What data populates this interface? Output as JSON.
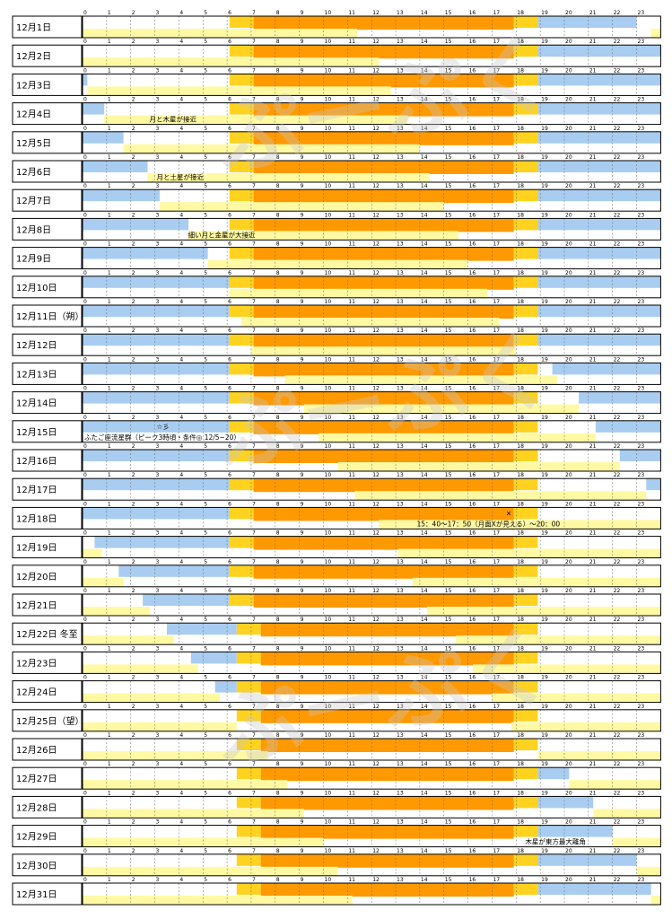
{
  "chart_data": {
    "type": "timeline",
    "hours": [
      "0",
      "1",
      "2",
      "3",
      "4",
      "5",
      "6",
      "7",
      "8",
      "9",
      "10",
      "11",
      "12",
      "13",
      "14",
      "15",
      "16",
      "17",
      "18",
      "19",
      "20",
      "21",
      "22",
      "23"
    ],
    "x_range": [
      0,
      24
    ],
    "watermark": "ぷーぷく",
    "colors": {
      "moon": "#a9cdf0",
      "twilight": "#ffd21f",
      "day": "#ff9900",
      "moonlow": "#fff9a3",
      "grid": "#666666",
      "border": "#000000"
    },
    "series_legend": [
      "moon",
      "twilight",
      "day",
      "moonlow"
    ],
    "days": [
      {
        "label": "12月1日",
        "moon": [
          [
            18.9,
            23.0
          ]
        ],
        "moonlow": [
          [
            0,
            11.4
          ],
          [
            23.6,
            24
          ]
        ],
        "tw": [
          6.1,
          7.1,
          17.9,
          18.9
        ],
        "notes": []
      },
      {
        "label": "12月2日",
        "moon": [
          [
            18.9,
            24
          ]
        ],
        "moonlow": [
          [
            0,
            12.3
          ]
        ],
        "tw": [
          6.1,
          7.1,
          17.9,
          18.9
        ],
        "notes": []
      },
      {
        "label": "12月3日",
        "moon": [
          [
            0,
            0.2
          ],
          [
            18.9,
            24
          ]
        ],
        "moonlow": [
          [
            0.2,
            12.8
          ]
        ],
        "tw": [
          6.1,
          7.1,
          17.9,
          18.9
        ],
        "notes": []
      },
      {
        "label": "12月4日",
        "moon": [
          [
            0,
            0.9
          ],
          [
            18.9,
            24
          ]
        ],
        "moonlow": [
          [
            0.9,
            13.5
          ]
        ],
        "tw": [
          6.1,
          7.1,
          17.9,
          18.9
        ],
        "notes": [
          {
            "text": "月と木星が接近",
            "h": 2.7
          }
        ]
      },
      {
        "label": "12月5日",
        "moon": [
          [
            0,
            1.7
          ],
          [
            18.9,
            24
          ]
        ],
        "moonlow": [
          [
            1.7,
            14.0
          ]
        ],
        "tw": [
          6.1,
          7.1,
          17.9,
          18.9
        ],
        "notes": []
      },
      {
        "label": "12月6日",
        "moon": [
          [
            0,
            2.7
          ],
          [
            18.9,
            24
          ]
        ],
        "moonlow": [
          [
            2.7,
            14.4
          ]
        ],
        "tw": [
          6.1,
          7.1,
          17.9,
          18.9
        ],
        "notes": [
          {
            "text": "月と土星が接近",
            "h": 3.0
          }
        ]
      },
      {
        "label": "12月7日",
        "moon": [
          [
            0,
            3.2
          ],
          [
            18.9,
            24
          ]
        ],
        "moonlow": [
          [
            3.2,
            15.0
          ]
        ],
        "tw": [
          6.1,
          7.1,
          17.9,
          18.9
        ],
        "notes": []
      },
      {
        "label": "12月8日",
        "moon": [
          [
            0,
            4.4
          ],
          [
            18.9,
            24
          ]
        ],
        "moonlow": [
          [
            4.4,
            15.6
          ]
        ],
        "tw": [
          6.1,
          7.1,
          17.9,
          18.9
        ],
        "notes": [
          {
            "text": "細い月と金星が大接近",
            "h": 4.3
          }
        ]
      },
      {
        "label": "12月9日",
        "moon": [
          [
            0,
            5.2
          ],
          [
            18.9,
            24
          ]
        ],
        "moonlow": [
          [
            5.2,
            16.0
          ]
        ],
        "tw": [
          6.1,
          7.1,
          17.9,
          18.9
        ],
        "notes": []
      },
      {
        "label": "12月10日",
        "moon": [
          [
            0,
            6.1
          ],
          [
            18.9,
            24
          ]
        ],
        "moonlow": [
          [
            6.1,
            16.8
          ]
        ],
        "tw": [
          6.1,
          7.1,
          17.9,
          18.9
        ],
        "notes": []
      },
      {
        "label": "12月11日（朔）",
        "moon": [
          [
            0,
            6.1
          ],
          [
            18.9,
            24
          ]
        ],
        "moonlow": [
          [
            6.6,
            17.3
          ]
        ],
        "tw": [
          6.1,
          7.1,
          17.9,
          18.9
        ],
        "notes": []
      },
      {
        "label": "12月12日",
        "moon": [
          [
            0,
            6.1
          ],
          [
            18.9,
            24
          ]
        ],
        "moonlow": [
          [
            7.0,
            18.0
          ]
        ],
        "tw": [
          6.1,
          7.1,
          17.9,
          18.9
        ],
        "notes": []
      },
      {
        "label": "12月13日",
        "moon": [
          [
            0,
            6.1
          ],
          [
            19.5,
            24
          ]
        ],
        "moonlow": [
          [
            8.4,
            19.7
          ]
        ],
        "tw": [
          6.1,
          7.1,
          17.9,
          18.9
        ],
        "notes": []
      },
      {
        "label": "12月14日",
        "moon": [
          [
            0,
            6.1
          ],
          [
            20.6,
            24
          ]
        ],
        "moonlow": [
          [
            9.2,
            20.6
          ]
        ],
        "tw": [
          6.1,
          7.1,
          17.9,
          18.9
        ],
        "notes": []
      },
      {
        "label": "12月15日",
        "moon": [
          [
            0,
            6.1
          ],
          [
            21.3,
            24
          ]
        ],
        "moonlow": [
          [
            9.8,
            21.3
          ]
        ],
        "tw": [
          6.1,
          7.1,
          17.9,
          18.9
        ],
        "notes": [
          {
            "text": "☆彡",
            "h": 3.0,
            "row": "top"
          },
          {
            "text": "ふたご座流星群（ピーク3時頃・条件◎ 12/5~20）",
            "h": 0.0
          }
        ]
      },
      {
        "label": "12月16日",
        "moon": [
          [
            0,
            6.1
          ],
          [
            22.3,
            24
          ]
        ],
        "moonlow": [
          [
            10.6,
            22.3
          ]
        ],
        "tw": [
          6.1,
          7.1,
          17.9,
          18.9
        ],
        "notes": []
      },
      {
        "label": "12月17日",
        "moon": [
          [
            0,
            6.1
          ],
          [
            23.4,
            24
          ]
        ],
        "moonlow": [
          [
            11.3,
            23.4
          ]
        ],
        "tw": [
          6.1,
          7.1,
          17.9,
          18.9
        ],
        "notes": []
      },
      {
        "label": "12月18日",
        "moon": [
          [
            0,
            6.1
          ]
        ],
        "moonlow": [
          [
            12.3,
            24
          ]
        ],
        "tw": [
          6.1,
          7.1,
          17.9,
          18.9
        ],
        "notes": [
          {
            "text": "×",
            "h": 17.5,
            "row": "top"
          },
          {
            "text": "15：40～17：50（月面Xが見える）～20：00",
            "h": 13.8
          }
        ]
      },
      {
        "label": "12月19日",
        "moon": [
          [
            0.5,
            6.1
          ]
        ],
        "moonlow": [
          [
            0,
            0.8
          ],
          [
            13.1,
            24
          ]
        ],
        "tw": [
          6.1,
          7.1,
          17.9,
          18.9
        ],
        "notes": []
      },
      {
        "label": "12月20日",
        "moon": [
          [
            1.5,
            6.1
          ]
        ],
        "moonlow": [
          [
            0,
            1.7
          ],
          [
            13.7,
            24
          ]
        ],
        "tw": [
          6.1,
          7.1,
          17.9,
          18.9
        ],
        "notes": []
      },
      {
        "label": "12月21日",
        "moon": [
          [
            2.5,
            6.1
          ]
        ],
        "moonlow": [
          [
            0,
            2.8
          ],
          [
            14.3,
            24
          ]
        ],
        "tw": [
          6.1,
          7.1,
          17.9,
          18.9
        ],
        "notes": []
      },
      {
        "label": "12月22日 冬至",
        "moon": [
          [
            3.5,
            6.4
          ]
        ],
        "moonlow": [
          [
            0,
            3.8
          ],
          [
            15.5,
            24
          ]
        ],
        "tw": [
          6.4,
          7.4,
          17.9,
          18.9
        ],
        "notes": []
      },
      {
        "label": "12月23日",
        "moon": [
          [
            4.5,
            6.4
          ]
        ],
        "moonlow": [
          [
            0,
            4.8
          ],
          [
            16.2,
            24
          ]
        ],
        "tw": [
          6.4,
          7.4,
          17.9,
          18.9
        ],
        "notes": []
      },
      {
        "label": "12月24日",
        "moon": [
          [
            5.5,
            6.4
          ]
        ],
        "moonlow": [
          [
            0,
            5.7
          ],
          [
            17.0,
            24
          ]
        ],
        "tw": [
          6.4,
          7.4,
          17.9,
          18.9
        ],
        "notes": []
      },
      {
        "label": "12月25日（望）",
        "moon": [],
        "moonlow": [
          [
            0,
            6.4
          ],
          [
            17.8,
            24
          ]
        ],
        "tw": [
          6.4,
          7.4,
          17.9,
          18.9
        ],
        "notes": []
      },
      {
        "label": "12月26日",
        "moon": [],
        "moonlow": [
          [
            0,
            7.7
          ],
          [
            18.9,
            24
          ]
        ],
        "tw": [
          6.4,
          7.4,
          17.9,
          18.9
        ],
        "notes": []
      },
      {
        "label": "12月27日",
        "moon": [
          [
            18.9,
            20.2
          ]
        ],
        "moonlow": [
          [
            0,
            8.5
          ],
          [
            20.2,
            24
          ]
        ],
        "tw": [
          6.4,
          7.4,
          17.9,
          18.9
        ],
        "notes": []
      },
      {
        "label": "12月28日",
        "moon": [
          [
            18.9,
            21.2
          ]
        ],
        "moonlow": [
          [
            0,
            9.2
          ],
          [
            21.2,
            24
          ]
        ],
        "tw": [
          6.4,
          7.4,
          17.9,
          18.9
        ],
        "notes": []
      },
      {
        "label": "12月29日",
        "moon": [
          [
            18.9,
            22.0
          ]
        ],
        "moonlow": [
          [
            0,
            10.0
          ],
          [
            22.0,
            24
          ]
        ],
        "tw": [
          6.4,
          7.4,
          17.9,
          18.9
        ],
        "notes": [
          {
            "text": "木星が東方最大離角",
            "h": 18.3
          }
        ]
      },
      {
        "label": "12月30日",
        "moon": [
          [
            18.9,
            23.0
          ]
        ],
        "moonlow": [
          [
            0,
            10.6
          ],
          [
            23.0,
            24
          ]
        ],
        "tw": [
          6.4,
          7.4,
          17.9,
          18.9
        ],
        "notes": []
      },
      {
        "label": "12月31日",
        "moon": [
          [
            18.9,
            23.6
          ]
        ],
        "moonlow": [
          [
            0,
            11.2
          ],
          [
            23.6,
            24
          ]
        ],
        "tw": [
          6.4,
          7.4,
          17.9,
          18.9
        ],
        "notes": []
      }
    ]
  }
}
